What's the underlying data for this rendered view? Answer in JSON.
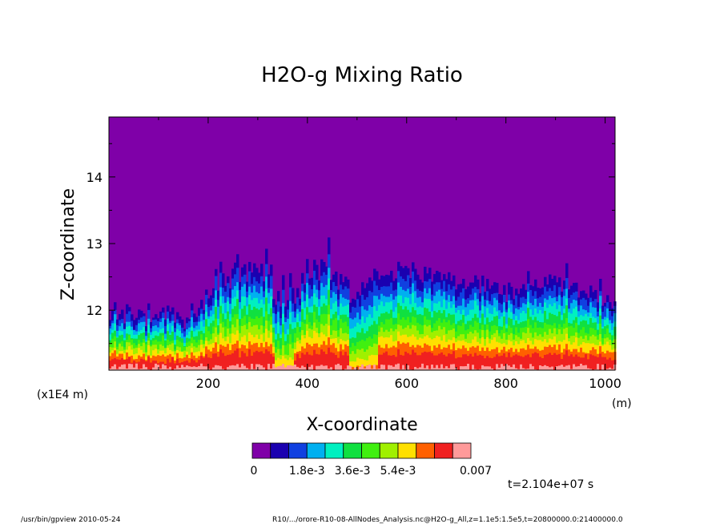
{
  "chart_data": {
    "type": "heatmap",
    "title": "H2O-g Mixing Ratio",
    "xlabel": "X-coordinate",
    "ylabel": "Z-coordinate",
    "x_unit": "(m)",
    "y_unit": "(x1E4 m)",
    "xlim": [
      0,
      1020
    ],
    "ylim": [
      11.1,
      14.9
    ],
    "x_ticks": [
      "200",
      "400",
      "600",
      "800",
      "1000"
    ],
    "y_ticks": [
      "12",
      "13",
      "14"
    ],
    "colorbar": {
      "tick_labels": [
        "0",
        "1.8e-3",
        "3.6e-3",
        "5.4e-3",
        "0.007"
      ],
      "colors": [
        "#7f00a8",
        "#1a00b0",
        "#1040e0",
        "#00b0f0",
        "#00f0c0",
        "#10e040",
        "#40f010",
        "#a0f000",
        "#ffe000",
        "#ff6000",
        "#f02020",
        "#ff9a9a"
      ]
    }
  },
  "annotations": {
    "time": "t=2.104e+07 s",
    "footer_left": "/usr/bin/gpview   2010-05-24",
    "footer_right": "R10/.../orore-R10-08-AllNodes_Analysis.nc@H2O-g_All,z=1.1e5:1.5e5,t=20800000.0:21400000.0"
  }
}
